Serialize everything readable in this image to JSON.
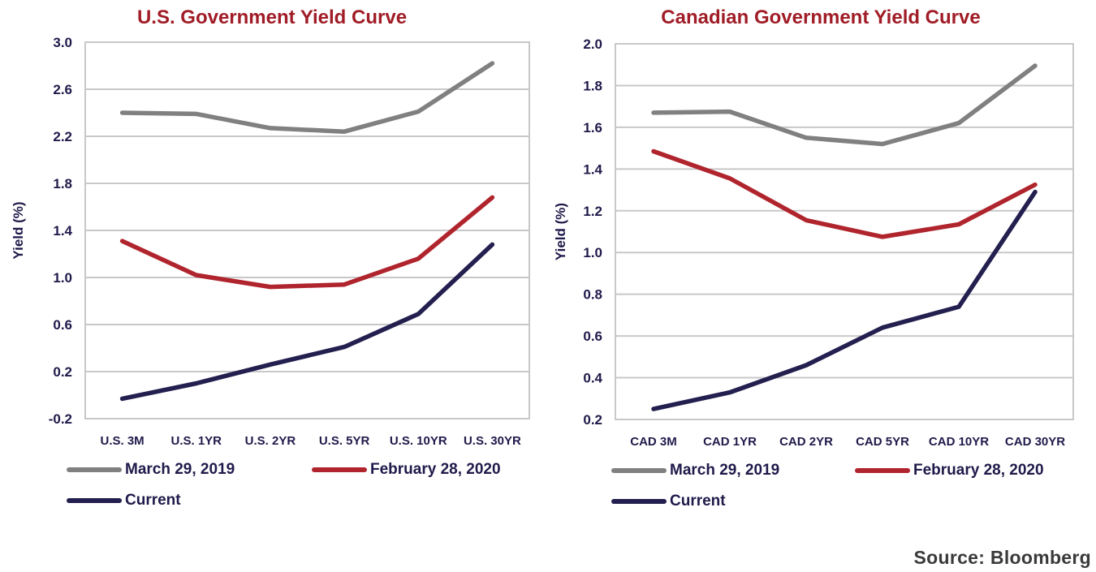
{
  "colors": {
    "title": "#a01c26",
    "axis_text": "#1f1a4a",
    "grid": "#c8c8c8",
    "series": [
      "#808080",
      "#b0252d",
      "#231f4f"
    ]
  },
  "source": "Source: Bloomberg",
  "chart_data": [
    {
      "type": "line",
      "title": "U.S. Government Yield Curve",
      "ylabel": "Yield (%)",
      "xlabel": "",
      "categories": [
        "U.S. 3M",
        "U.S. 1YR",
        "U.S. 2YR",
        "U.S. 5YR",
        "U.S. 10YR",
        "U.S. 30YR"
      ],
      "ylim": [
        -0.2,
        3.0
      ],
      "yticks": [
        "-0.2",
        "0.2",
        "0.6",
        "1.0",
        "1.4",
        "1.8",
        "2.2",
        "2.6",
        "3.0"
      ],
      "grid": true,
      "legend": "bottom",
      "series": [
        {
          "name": "March 29, 2019",
          "values": [
            2.4,
            2.39,
            2.27,
            2.24,
            2.41,
            2.82
          ]
        },
        {
          "name": "February 28, 2020",
          "values": [
            1.31,
            1.02,
            0.92,
            0.94,
            1.16,
            1.68
          ]
        },
        {
          "name": "Current",
          "values": [
            -0.03,
            0.1,
            0.26,
            0.41,
            0.69,
            1.28
          ]
        }
      ]
    },
    {
      "type": "line",
      "title": "Canadian Government Yield Curve",
      "ylabel": "Yield (%)",
      "xlabel": "",
      "categories": [
        "CAD 3M",
        "CAD 1YR",
        "CAD 2YR",
        "CAD 5YR",
        "CAD 10YR",
        "CAD 30YR"
      ],
      "ylim": [
        0.2,
        2.0
      ],
      "yticks": [
        "0.2",
        "0.4",
        "0.6",
        "0.8",
        "1.0",
        "1.2",
        "1.4",
        "1.6",
        "1.8",
        "2.0"
      ],
      "grid": true,
      "legend": "bottom",
      "series": [
        {
          "name": "March 29, 2019",
          "values": [
            1.67,
            1.675,
            1.55,
            1.52,
            1.62,
            1.895
          ]
        },
        {
          "name": "February 28, 2020",
          "values": [
            1.485,
            1.355,
            1.155,
            1.075,
            1.135,
            1.325
          ]
        },
        {
          "name": "Current",
          "values": [
            0.25,
            0.33,
            0.46,
            0.64,
            0.74,
            1.29
          ]
        }
      ]
    }
  ]
}
